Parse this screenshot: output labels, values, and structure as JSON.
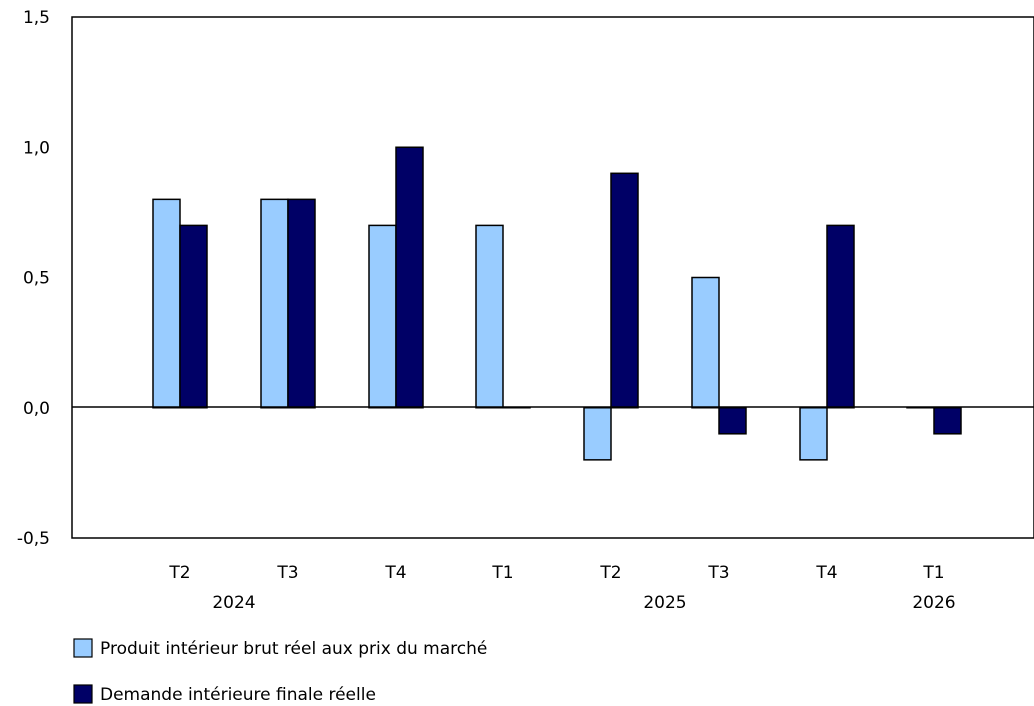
{
  "chart_data": {
    "type": "bar",
    "title": "",
    "xlabel": "",
    "ylabel": "",
    "categories": [
      "T2",
      "T3",
      "T4",
      "T1",
      "T2",
      "T3",
      "T4",
      "T1"
    ],
    "year_labels": [
      "2024",
      "2025",
      "2026"
    ],
    "y_ticks": [
      "1,5",
      "1,0",
      "0,5",
      "0,0",
      "-0,5"
    ],
    "ylim": [
      -0.5,
      1.5
    ],
    "series": [
      {
        "name": "Produit intérieur brut réel aux prix du marché",
        "color": "#99ccff",
        "values": [
          0.8,
          0.8,
          0.7,
          0.7,
          -0.2,
          0.5,
          -0.2,
          0.0
        ]
      },
      {
        "name": "Demande intérieure finale réelle",
        "color": "#000066",
        "values": [
          0.7,
          0.8,
          1.0,
          0.0,
          0.9,
          -0.1,
          0.7,
          -0.1
        ]
      }
    ],
    "legend_position": "bottom-left",
    "grid": false
  }
}
